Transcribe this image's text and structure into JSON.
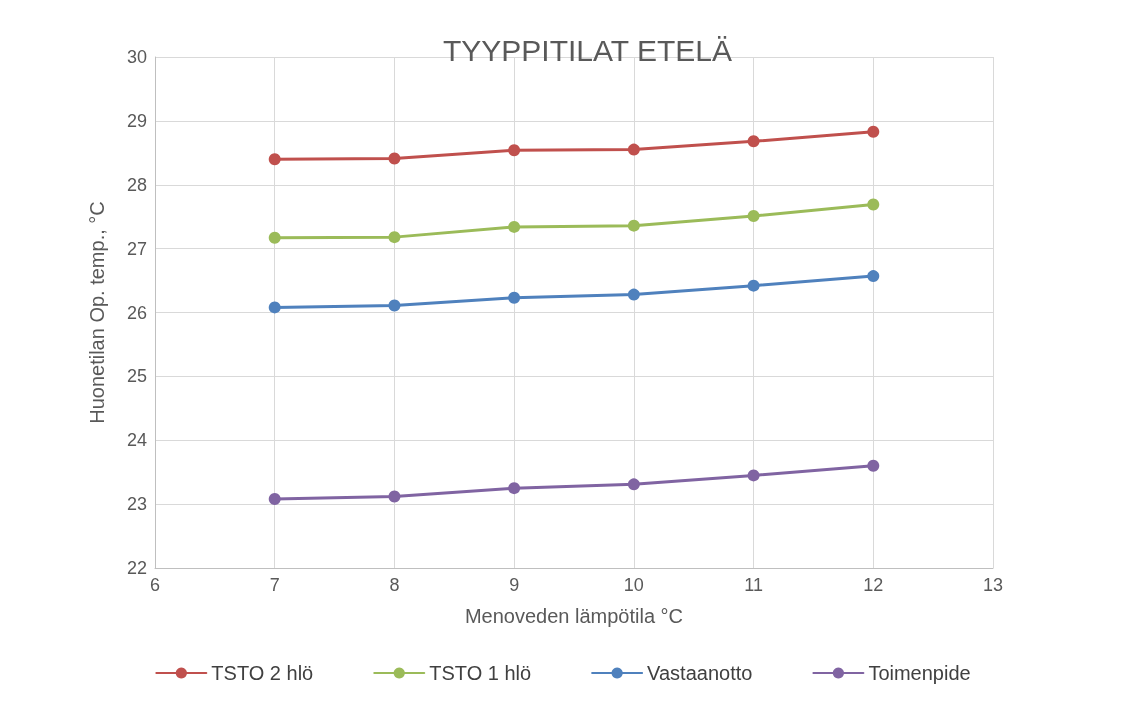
{
  "chart_data": {
    "type": "line",
    "title": "TYYPPITILAT ETELÄ",
    "xlabel": "Menoveden lämpötila °C",
    "ylabel": "Huonetilan Op. temp., °C",
    "x": [
      7,
      8,
      9,
      10,
      11,
      12
    ],
    "series": [
      {
        "name": "TSTO 2 hlö",
        "color": "#c0504d",
        "values": [
          28.4,
          28.41,
          28.54,
          28.55,
          28.68,
          28.83
        ]
      },
      {
        "name": "TSTO 1 hlö",
        "color": "#9bbb59",
        "values": [
          27.17,
          27.18,
          27.34,
          27.36,
          27.51,
          27.69
        ]
      },
      {
        "name": "Vastaanotto",
        "color": "#4f81bd",
        "values": [
          26.08,
          26.11,
          26.23,
          26.28,
          26.42,
          26.57
        ]
      },
      {
        "name": "Toimenpide",
        "color": "#8064a2",
        "values": [
          23.08,
          23.12,
          23.25,
          23.31,
          23.45,
          23.6
        ]
      }
    ],
    "xlim": [
      6,
      13
    ],
    "xticks": [
      6,
      7,
      8,
      9,
      10,
      11,
      12,
      13
    ],
    "ylim": [
      22,
      30
    ],
    "yticks": [
      22,
      23,
      24,
      25,
      26,
      27,
      28,
      29,
      30
    ],
    "grid": true,
    "legend": "bottom",
    "marker": "circle",
    "line_style": "solid"
  }
}
